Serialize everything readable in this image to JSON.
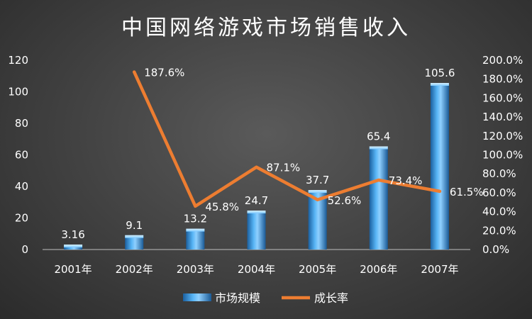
{
  "chart_data": {
    "type": "bar",
    "title": "中国网络游戏市场销售收入",
    "categories": [
      "2001年",
      "2002年",
      "2003年",
      "2004年",
      "2005年",
      "2006年",
      "2007年"
    ],
    "series": [
      {
        "name": "市场规模",
        "type": "bar",
        "axis": "left",
        "values": [
          3.16,
          9.1,
          13.2,
          24.7,
          37.7,
          65.4,
          105.6
        ],
        "labels": [
          "3.16",
          "9.1",
          "13.2",
          "24.7",
          "37.7",
          "65.4",
          "105.6"
        ]
      },
      {
        "name": "成长率",
        "type": "line",
        "axis": "right",
        "values": [
          null,
          187.6,
          45.8,
          87.1,
          52.6,
          73.4,
          61.5
        ],
        "labels": [
          "",
          "187.6%",
          "45.8%",
          "87.1%",
          "52.6%",
          "73.4%",
          "61.5%"
        ]
      }
    ],
    "y_left": {
      "min": 0,
      "max": 120,
      "step": 20,
      "ticks": [
        "0",
        "20",
        "40",
        "60",
        "80",
        "100",
        "120"
      ]
    },
    "y_right": {
      "min": 0,
      "max": 200,
      "step": 20,
      "ticks": [
        "0.0%",
        "20.0%",
        "40.0%",
        "60.0%",
        "80.0%",
        "100.0%",
        "120.0%",
        "140.0%",
        "160.0%",
        "180.0%",
        "200.0%"
      ]
    },
    "grid": false,
    "legend_position": "bottom",
    "colors": {
      "bar": "#2e8fd9",
      "bar_light": "#8fd0ff",
      "line": "#ed7d31",
      "text": "#ffffff",
      "axis": "#bfbfbf"
    }
  }
}
